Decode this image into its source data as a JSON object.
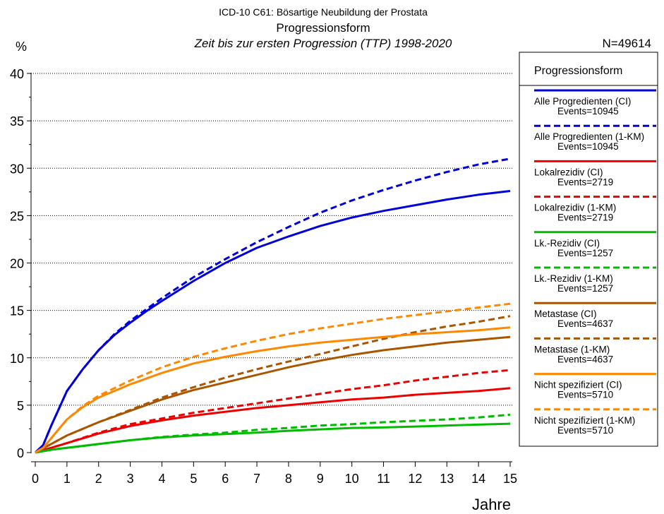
{
  "chart_data": {
    "type": "line",
    "title_line1": "ICD-10 C61: Bösartige Neubildung der Prostata",
    "title_line2": "Progressionsform",
    "subtitle": "Zeit bis zur ersten Progression (TTP) 1998-2020",
    "n_label": "N=49614",
    "ylabel": "%",
    "xlabel": "Jahre",
    "xlim": [
      0,
      15
    ],
    "ylim": [
      0,
      40
    ],
    "xticks": [
      "0",
      "1",
      "2",
      "3",
      "4",
      "5",
      "6",
      "7",
      "8",
      "9",
      "10",
      "11",
      "12",
      "13",
      "14",
      "15"
    ],
    "yticks": [
      "0",
      "5",
      "10",
      "15",
      "20",
      "25",
      "30",
      "35",
      "40"
    ],
    "grid": "horizontal dotted",
    "legend_title": "Progressionsform",
    "legend_position": "right",
    "series": [
      {
        "name": "Alle Progredienten (CI)",
        "events": "Events=10945",
        "color": "#0000dd",
        "dash": false,
        "x": [
          0,
          0.25,
          0.5,
          1,
          1.5,
          2,
          2.5,
          3,
          3.5,
          4,
          5,
          6,
          7,
          8,
          9,
          10,
          11,
          12,
          13,
          14,
          15
        ],
        "y": [
          0,
          0.8,
          2.8,
          6.5,
          8.8,
          10.8,
          12.4,
          13.7,
          14.9,
          16.0,
          18.1,
          20.0,
          21.6,
          22.8,
          23.9,
          24.8,
          25.5,
          26.1,
          26.7,
          27.2,
          27.6
        ]
      },
      {
        "name": "Alle Progredienten (1-KM)",
        "events": "Events=10945",
        "color": "#0000dd",
        "dash": true,
        "x": [
          0,
          0.25,
          0.5,
          1,
          1.5,
          2,
          2.5,
          3,
          3.5,
          4,
          5,
          6,
          7,
          8,
          9,
          10,
          11,
          12,
          13,
          14,
          15
        ],
        "y": [
          0,
          0.8,
          2.8,
          6.5,
          8.8,
          10.8,
          12.5,
          13.9,
          15.1,
          16.3,
          18.5,
          20.4,
          22.2,
          23.8,
          25.3,
          26.6,
          27.7,
          28.7,
          29.6,
          30.4,
          31.0
        ]
      },
      {
        "name": "Lokalrezidiv (CI)",
        "events": "Events=2719",
        "color": "#ee0000",
        "dash": false,
        "x": [
          0,
          0.5,
          1,
          2,
          3,
          4,
          5,
          6,
          7,
          8,
          9,
          10,
          11,
          12,
          13,
          14,
          15
        ],
        "y": [
          0,
          0.5,
          1.0,
          2.0,
          2.8,
          3.4,
          3.9,
          4.3,
          4.7,
          5.0,
          5.3,
          5.6,
          5.8,
          6.1,
          6.3,
          6.5,
          6.8
        ]
      },
      {
        "name": "Lokalrezidiv (1-KM)",
        "events": "Events=2719",
        "color": "#ee0000",
        "dash": true,
        "x": [
          0,
          0.5,
          1,
          2,
          3,
          4,
          5,
          6,
          7,
          8,
          9,
          10,
          11,
          12,
          13,
          14,
          15
        ],
        "y": [
          0,
          0.5,
          1.0,
          2.1,
          3.0,
          3.6,
          4.2,
          4.7,
          5.2,
          5.7,
          6.2,
          6.7,
          7.1,
          7.6,
          8.0,
          8.4,
          8.7
        ]
      },
      {
        "name": "Lk.-Rezidiv (CI)",
        "events": "Events=1257",
        "color": "#00bb00",
        "dash": false,
        "x": [
          0,
          0.5,
          1,
          2,
          3,
          4,
          5,
          6,
          7,
          8,
          9,
          10,
          11,
          12,
          13,
          14,
          15
        ],
        "y": [
          0,
          0.3,
          0.5,
          0.9,
          1.3,
          1.6,
          1.8,
          1.95,
          2.1,
          2.3,
          2.45,
          2.6,
          2.65,
          2.75,
          2.85,
          2.95,
          3.05
        ]
      },
      {
        "name": "Lk.-Rezidiv (1-KM)",
        "events": "Events=1257",
        "color": "#00bb00",
        "dash": true,
        "x": [
          0,
          0.5,
          1,
          2,
          3,
          4,
          5,
          6,
          7,
          8,
          9,
          10,
          11,
          12,
          13,
          14,
          15
        ],
        "y": [
          0,
          0.3,
          0.5,
          0.9,
          1.3,
          1.65,
          1.9,
          2.1,
          2.4,
          2.6,
          2.85,
          3.0,
          3.2,
          3.35,
          3.5,
          3.7,
          4.0
        ]
      },
      {
        "name": "Metastase (CI)",
        "events": "Events=4637",
        "color": "#aa5500",
        "dash": false,
        "x": [
          0,
          0.5,
          1,
          2,
          3,
          4,
          5,
          6,
          7,
          8,
          9,
          10,
          11,
          12,
          13,
          14,
          15
        ],
        "y": [
          0,
          0.9,
          1.8,
          3.2,
          4.4,
          5.6,
          6.6,
          7.4,
          8.2,
          9.0,
          9.7,
          10.3,
          10.8,
          11.2,
          11.6,
          11.9,
          12.2
        ]
      },
      {
        "name": "Metastase (1-KM)",
        "events": "Events=4637",
        "color": "#aa5500",
        "dash": true,
        "x": [
          0,
          0.5,
          1,
          2,
          3,
          4,
          5,
          6,
          7,
          8,
          9,
          10,
          11,
          12,
          13,
          14,
          15
        ],
        "y": [
          0,
          0.9,
          1.8,
          3.2,
          4.5,
          5.8,
          6.9,
          7.9,
          8.8,
          9.6,
          10.4,
          11.2,
          12.0,
          12.7,
          13.3,
          13.8,
          14.4
        ]
      },
      {
        "name": "Nicht spezifiziert (CI)",
        "events": "Events=5710",
        "color": "#ff8800",
        "dash": false,
        "x": [
          0,
          0.25,
          0.5,
          1,
          1.5,
          2,
          2.5,
          3,
          3.5,
          4,
          5,
          6,
          7,
          8,
          9,
          10,
          11,
          12,
          13,
          14,
          15
        ],
        "y": [
          0,
          0.5,
          1.5,
          3.5,
          4.8,
          5.8,
          6.5,
          7.2,
          7.8,
          8.4,
          9.4,
          10.1,
          10.7,
          11.2,
          11.6,
          11.9,
          12.2,
          12.5,
          12.7,
          12.9,
          13.2
        ]
      },
      {
        "name": "Nicht spezifiziert (1-KM)",
        "events": "Events=5710",
        "color": "#ff8800",
        "dash": true,
        "x": [
          0,
          0.25,
          0.5,
          1,
          1.5,
          2,
          2.5,
          3,
          3.5,
          4,
          5,
          6,
          7,
          8,
          9,
          10,
          11,
          12,
          13,
          14,
          15
        ],
        "y": [
          0,
          0.5,
          1.5,
          3.5,
          4.9,
          6.0,
          6.8,
          7.6,
          8.3,
          9.0,
          10.1,
          11.0,
          11.8,
          12.5,
          13.1,
          13.6,
          14.1,
          14.5,
          14.9,
          15.3,
          15.7
        ]
      }
    ]
  }
}
